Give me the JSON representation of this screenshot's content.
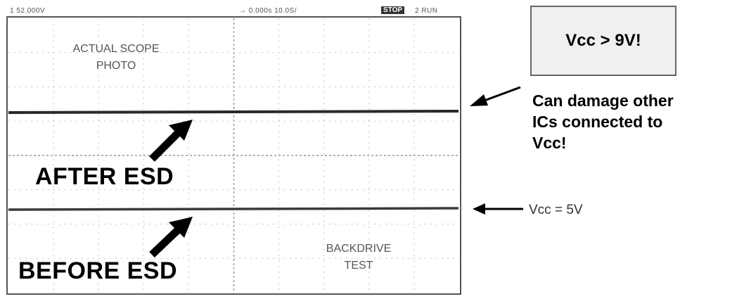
{
  "scope_header": {
    "channel": "1  52.000V",
    "timebase": "→ 0.000s   10.0S/",
    "mode": "STOP",
    "status": "2 RUN"
  },
  "scope_labels": {
    "photo_line1": "ACTUAL SCOPE",
    "photo_line2": "PHOTO",
    "test_line1": "BACKDRIVE",
    "test_line2": "TEST"
  },
  "annotations": {
    "after_esd": "AFTER ESD",
    "before_esd": "BEFORE ESD",
    "vcc_box": "Vcc > 9V!",
    "warning_line1": "Can damage other",
    "warning_line2": "ICs connected to",
    "warning_line3": "Vcc!",
    "vcc_normal": "Vcc = 5V"
  },
  "colors": {
    "trace": "#2a2a2a",
    "grid": "#c4c4c4",
    "box_fill": "#f0f0f0"
  }
}
